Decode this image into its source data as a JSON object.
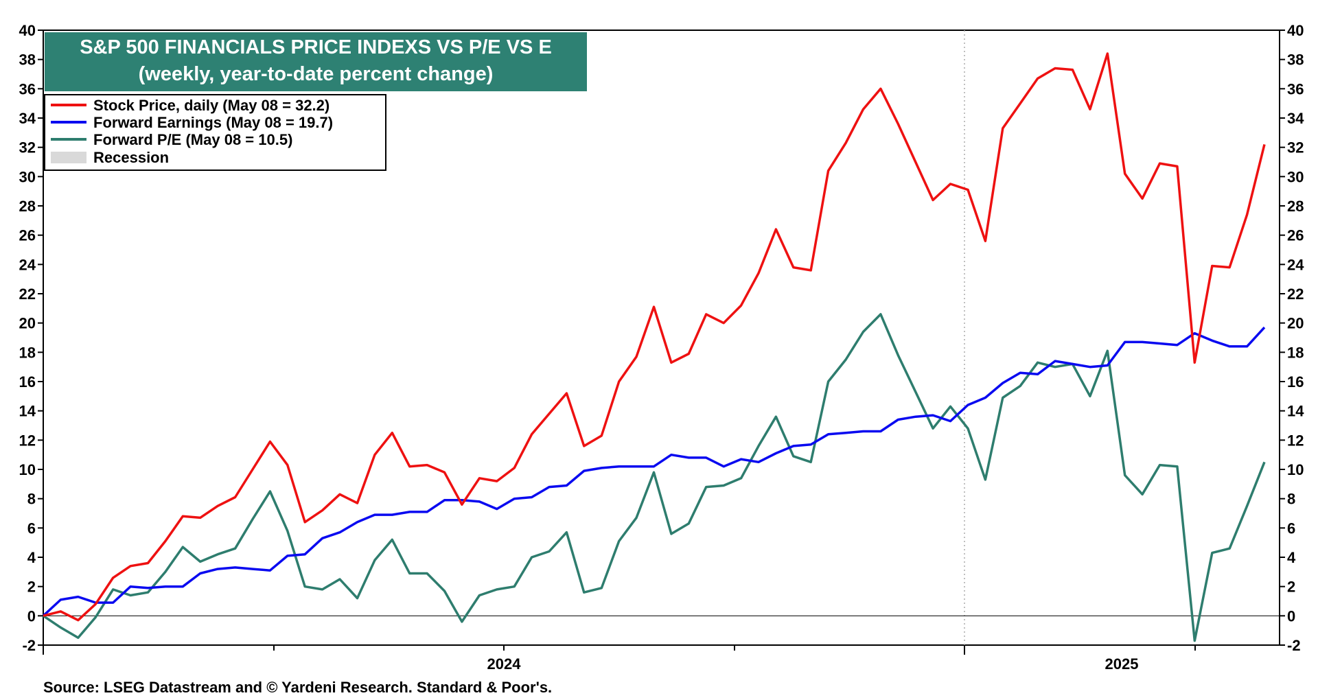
{
  "chart_data": {
    "type": "line",
    "title": "S&P 500 FINANCIALS PRICE INDEXS VS P/E VS E",
    "subtitle": "(weekly, year-to-date percent change)",
    "source": "Source: LSEG Datastream and © Yardeni Research. Standard & Poor's.",
    "ylim": [
      -2,
      40
    ],
    "y_ticks": [
      "-2",
      "0",
      "2",
      "4",
      "6",
      "8",
      "10",
      "12",
      "14",
      "16",
      "18",
      "20",
      "22",
      "24",
      "26",
      "28",
      "30",
      "32",
      "34",
      "36",
      "38",
      "40"
    ],
    "x_labels": [
      "2024",
      "2025"
    ],
    "grid": "vertical dotted lines at year boundaries",
    "legend_position": "top-left",
    "recession_label": "Recession",
    "colors": {
      "stock_price": "#ee1111",
      "forward_earnings": "#0a0af0",
      "forward_pe": "#2e7d6e",
      "recession": "#d9d9d9",
      "title_bg": "#2e8173"
    },
    "series": [
      {
        "name": "Stock Price, daily (May 08 = 32.2)",
        "values": [
          0,
          0.3,
          -0.3,
          0.8,
          2.6,
          3.4,
          3.6,
          5.1,
          6.8,
          6.7,
          7.5,
          8.1,
          10,
          11.9,
          10.3,
          6.4,
          7.2,
          8.3,
          7.7,
          11,
          12.5,
          10.2,
          10.3,
          9.8,
          7.6,
          9.4,
          9.2,
          10.1,
          12.4,
          13.8,
          15.2,
          11.6,
          12.3,
          16,
          17.7,
          21.1,
          17.3,
          17.9,
          20.6,
          20,
          21.2,
          23.4,
          26.4,
          23.8,
          23.6,
          30.4,
          32.3,
          34.6,
          36,
          33.6,
          31,
          28.4,
          29.5,
          29.1,
          25.6,
          33.3,
          35,
          36.7,
          37.4,
          37.3,
          34.6,
          38.4,
          30.2,
          28.5,
          30.9,
          30.7,
          17.3,
          23.9,
          23.8,
          27.4,
          32.2
        ]
      },
      {
        "name": "Forward Earnings (May 08 = 19.7)",
        "values": [
          0,
          1.1,
          1.3,
          0.9,
          0.9,
          2,
          1.9,
          2,
          2,
          2.9,
          3.2,
          3.3,
          3.2,
          3.1,
          4.1,
          4.2,
          5.3,
          5.7,
          6.4,
          6.9,
          6.9,
          7.1,
          7.1,
          7.9,
          7.9,
          7.8,
          7.3,
          8,
          8.1,
          8.8,
          8.9,
          9.9,
          10.1,
          10.2,
          10.2,
          10.2,
          11,
          10.8,
          10.8,
          10.2,
          10.7,
          10.5,
          11.1,
          11.6,
          11.7,
          12.4,
          12.5,
          12.6,
          12.6,
          13.4,
          13.6,
          13.7,
          13.3,
          14.4,
          14.9,
          15.9,
          16.6,
          16.5,
          17.4,
          17.2,
          17,
          17.1,
          18.7,
          18.7,
          18.6,
          18.5,
          19.3,
          18.8,
          18.4,
          18.4,
          19.7
        ]
      },
      {
        "name": "Forward P/E (May 08 = 10.5)",
        "values": [
          0,
          -0.8,
          -1.5,
          -0.1,
          1.8,
          1.4,
          1.6,
          3,
          4.7,
          3.7,
          4.2,
          4.6,
          6.6,
          8.5,
          5.8,
          2,
          1.8,
          2.5,
          1.2,
          3.8,
          5.2,
          2.9,
          2.9,
          1.7,
          -0.4,
          1.4,
          1.8,
          2,
          4,
          4.4,
          5.7,
          1.6,
          1.9,
          5.1,
          6.7,
          9.8,
          5.6,
          6.3,
          8.8,
          8.9,
          9.4,
          11.6,
          13.6,
          10.9,
          10.5,
          16,
          17.5,
          19.4,
          20.6,
          17.8,
          15.3,
          12.8,
          14.3,
          12.8,
          9.3,
          14.9,
          15.7,
          17.3,
          17,
          17.2,
          15,
          18.1,
          9.6,
          8.3,
          10.3,
          10.2,
          -1.7,
          4.3,
          4.6,
          7.5,
          10.5
        ]
      }
    ]
  }
}
